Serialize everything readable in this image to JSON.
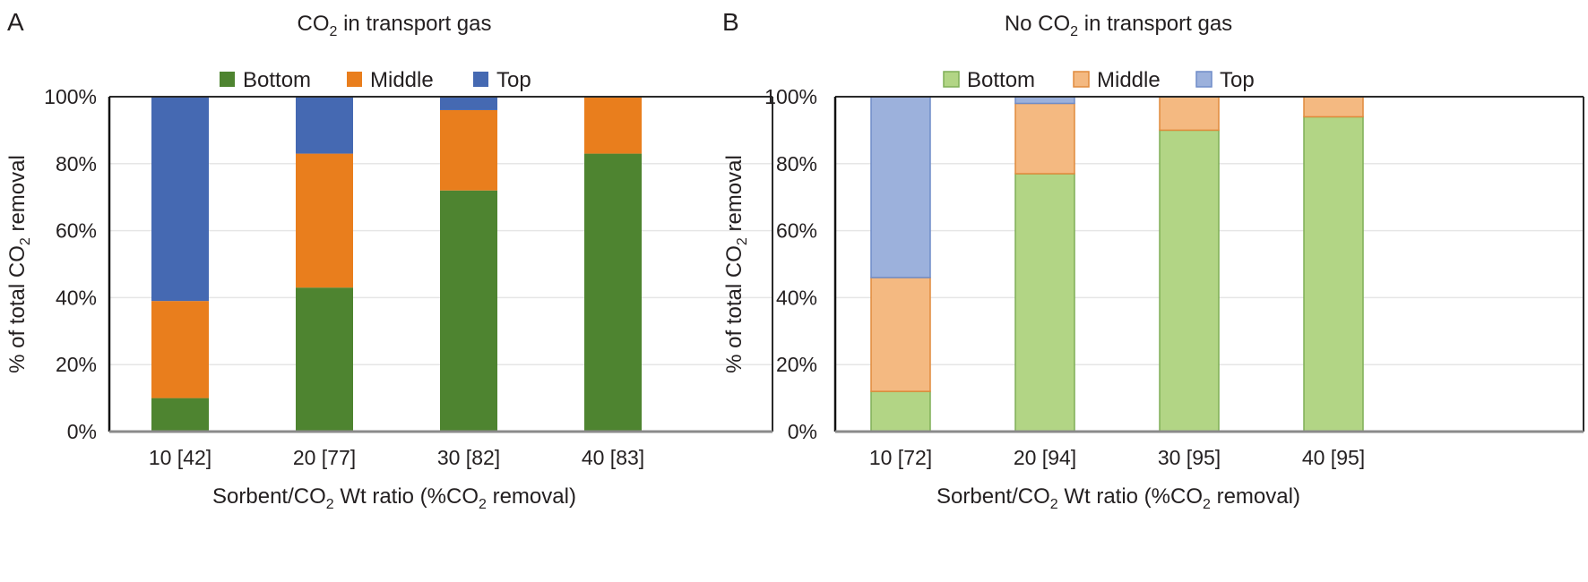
{
  "figure": {
    "panels": [
      "A",
      "B"
    ]
  },
  "chart_data": [
    {
      "panel": "A",
      "type": "bar",
      "stacked": true,
      "title": "CO2 in transport gas",
      "title_parts": {
        "pre": "CO",
        "sub": "2",
        "post": " in transport gas"
      },
      "xlabel": "Sorbent/CO2 Wt ratio (%CO2 removal)",
      "xlabel_parts": {
        "a": "Sorbent/CO",
        "sub1": "2",
        "b": " Wt ratio (%CO",
        "sub2": "2",
        "c": " removal)"
      },
      "ylabel": "% of total CO2 removal",
      "ylabel_parts": {
        "a": "% of total CO",
        "sub": "2",
        "b": " removal"
      },
      "ylim": [
        0,
        100
      ],
      "yticks": [
        "0%",
        "20%",
        "40%",
        "60%",
        "80%",
        "100%"
      ],
      "grid": true,
      "legend_position": "top-center",
      "categories": [
        "10 [42]",
        "20 [77]",
        "30 [82]",
        "40 [83]"
      ],
      "series": [
        {
          "name": "Bottom",
          "color": "#4e8430",
          "values": [
            10,
            43,
            72,
            83
          ]
        },
        {
          "name": "Middle",
          "color": "#e97e1d",
          "values": [
            29,
            40,
            24,
            17
          ]
        },
        {
          "name": "Top",
          "color": "#4569b2",
          "values": [
            61,
            17,
            4,
            0
          ]
        }
      ]
    },
    {
      "panel": "B",
      "type": "bar",
      "stacked": true,
      "title": "No CO2 in transport gas",
      "title_parts": {
        "pre": "No CO",
        "sub": "2",
        "post": " in transport gas"
      },
      "xlabel": "Sorbent/CO2 Wt ratio (%CO2 removal)",
      "xlabel_parts": {
        "a": "Sorbent/CO",
        "sub1": "2",
        "b": " Wt ratio (%CO",
        "sub2": "2",
        "c": " removal)"
      },
      "ylabel": "% of total CO2 removal",
      "ylabel_parts": {
        "a": "% of total CO",
        "sub": "2",
        "b": " removal"
      },
      "ylim": [
        0,
        100
      ],
      "yticks": [
        "0%",
        "20%",
        "40%",
        "60%",
        "80%",
        "100%"
      ],
      "grid": true,
      "legend_position": "top-center",
      "categories": [
        "10 [72]",
        "20 [94]",
        "30 [95]",
        "40 [95]"
      ],
      "series": [
        {
          "name": "Bottom",
          "color": "#b2d585",
          "edge": "#7fae56",
          "values": [
            12,
            77,
            90,
            94
          ]
        },
        {
          "name": "Middle",
          "color": "#f4b981",
          "edge": "#e08a3c",
          "values": [
            34,
            21,
            10,
            6
          ]
        },
        {
          "name": "Top",
          "color": "#9cb1dc",
          "edge": "#6f8cc8",
          "values": [
            54,
            2,
            0,
            0
          ]
        }
      ]
    }
  ]
}
